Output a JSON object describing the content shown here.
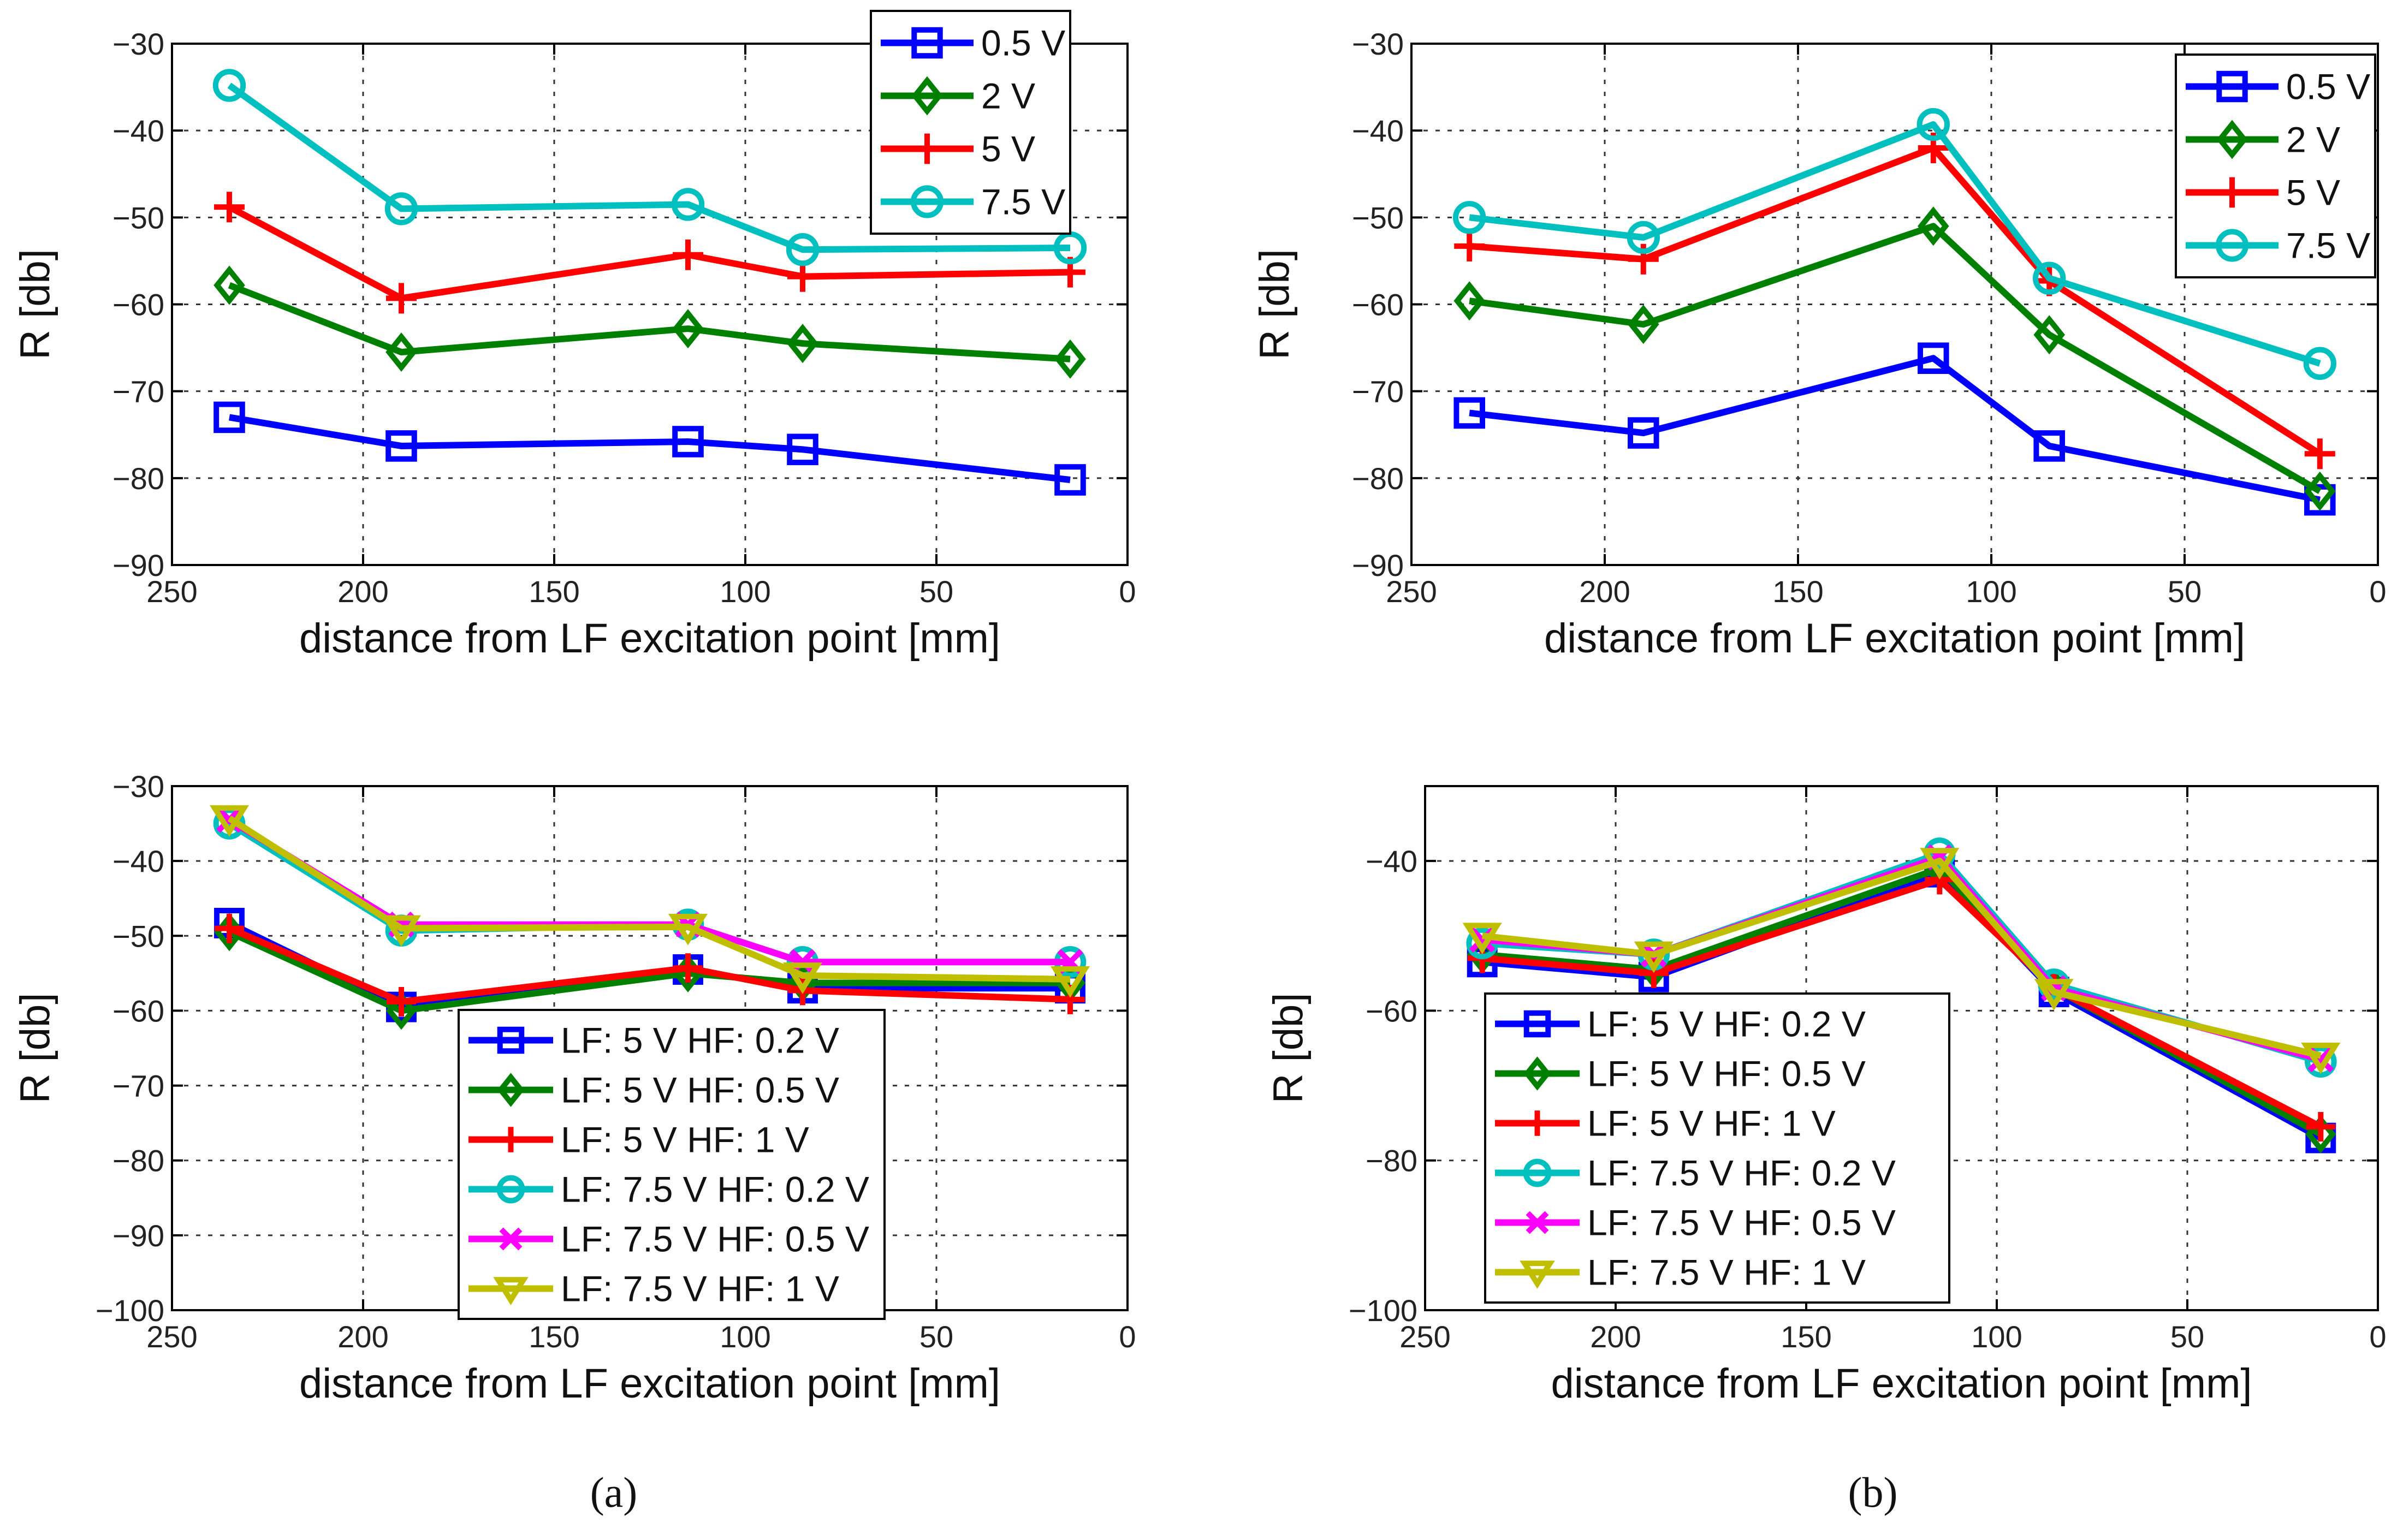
{
  "chart_data": [
    {
      "id": "top-left",
      "type": "line",
      "xlabel": "distance from LF excitation point [mm]",
      "ylabel": "R [db]",
      "xlim": [
        250,
        0
      ],
      "ylim": [
        -90,
        -30
      ],
      "xticks": [
        250,
        200,
        150,
        100,
        50,
        0
      ],
      "xtick_labels": [
        "250",
        "200",
        "150",
        "100",
        "50",
        "0"
      ],
      "yticks": [
        -30,
        -40,
        -50,
        -60,
        -70,
        -80,
        -90
      ],
      "ytick_labels": [
        "−30",
        "−40",
        "−50",
        "−60",
        "−70",
        "−80",
        "−90"
      ],
      "grid": true,
      "legend_position": "top-right",
      "x": [
        235,
        190,
        115,
        85,
        15
      ],
      "series": [
        {
          "name": "0.5 V",
          "color": "#0000ff",
          "marker": "square",
          "values": [
            -73,
            -76.3,
            -75.8,
            -76.7,
            -80.2
          ]
        },
        {
          "name": "2 V",
          "color": "#008000",
          "marker": "diamond",
          "values": [
            -57.8,
            -65.5,
            -62.8,
            -64.5,
            -66.3
          ]
        },
        {
          "name": "5 V",
          "color": "#ff0000",
          "marker": "plus",
          "values": [
            -48.8,
            -59.3,
            -54.3,
            -56.8,
            -56.3
          ]
        },
        {
          "name": "7.5 V",
          "color": "#00bfbf",
          "marker": "circle",
          "values": [
            -34.8,
            -49,
            -48.5,
            -53.7,
            -53.5
          ]
        }
      ]
    },
    {
      "id": "top-right",
      "type": "line",
      "xlabel": "distance from LF excitation point [mm]",
      "ylabel": "R [db]",
      "xlim": [
        250,
        0
      ],
      "ylim": [
        -90,
        -30
      ],
      "xticks": [
        250,
        200,
        150,
        100,
        50,
        0
      ],
      "xtick_labels": [
        "250",
        "200",
        "150",
        "100",
        "50",
        "0"
      ],
      "yticks": [
        -30,
        -40,
        -50,
        -60,
        -70,
        -80,
        -90
      ],
      "ytick_labels": [
        "−30",
        "−40",
        "−50",
        "−60",
        "−70",
        "−80",
        "−90"
      ],
      "grid": true,
      "legend_position": "top-right",
      "x": [
        235,
        190,
        115,
        85,
        15
      ],
      "series": [
        {
          "name": "0.5 V",
          "color": "#0000ff",
          "marker": "square",
          "values": [
            -72.5,
            -74.8,
            -66.2,
            -76.3,
            -82.5
          ]
        },
        {
          "name": "2 V",
          "color": "#008000",
          "marker": "diamond",
          "values": [
            -59.6,
            -62.3,
            -51,
            -63.5,
            -81.5
          ]
        },
        {
          "name": "5 V",
          "color": "#ff0000",
          "marker": "plus",
          "values": [
            -53.3,
            -54.8,
            -42,
            -57.3,
            -77.2
          ]
        },
        {
          "name": "7.5 V",
          "color": "#00bfbf",
          "marker": "circle",
          "values": [
            -50,
            -52.3,
            -39.3,
            -57,
            -66.8
          ]
        }
      ]
    },
    {
      "id": "bottom-left",
      "type": "line",
      "xlabel": "distance from LF excitation point [mm]",
      "ylabel": "R [db]",
      "xlim": [
        250,
        0
      ],
      "ylim": [
        -100,
        -30
      ],
      "xticks": [
        250,
        200,
        150,
        100,
        50,
        0
      ],
      "xtick_labels": [
        "250",
        "200",
        "150",
        "100",
        "50",
        "0"
      ],
      "yticks": [
        -30,
        -40,
        -50,
        -60,
        -70,
        -80,
        -90,
        -100
      ],
      "ytick_labels": [
        "−30",
        "−40",
        "−50",
        "−60",
        "−70",
        "−80",
        "−90",
        "−100"
      ],
      "grid": true,
      "legend_position": "bottom-center",
      "x": [
        235,
        190,
        115,
        85,
        15
      ],
      "series": [
        {
          "name": "LF: 5 V HF: 0.2 V",
          "color": "#0000ff",
          "marker": "square",
          "values": [
            -48.3,
            -59.5,
            -54.5,
            -57,
            -57
          ]
        },
        {
          "name": "LF: 5 V HF: 0.5 V",
          "color": "#008000",
          "marker": "diamond",
          "values": [
            -49.5,
            -60,
            -55,
            -56.3,
            -56.3
          ]
        },
        {
          "name": "LF: 5 V HF: 1 V",
          "color": "#ff0000",
          "marker": "plus",
          "values": [
            -49,
            -58.8,
            -54.3,
            -57.3,
            -58.5
          ]
        },
        {
          "name": "LF: 7.5 V HF: 0.2 V",
          "color": "#00bfbf",
          "marker": "circle",
          "values": [
            -35,
            -49.3,
            -48.5,
            -53.5,
            -53.5
          ]
        },
        {
          "name": "LF: 7.5 V HF: 0.5 V",
          "color": "#ff00ff",
          "marker": "x",
          "values": [
            -34.5,
            -48.5,
            -48.5,
            -53.5,
            -53.5
          ]
        },
        {
          "name": "LF: 7.5 V HF: 1 V",
          "color": "#bfbf00",
          "marker": "triangle-down",
          "values": [
            -34.3,
            -49,
            -48.8,
            -55.3,
            -55.8
          ]
        }
      ]
    },
    {
      "id": "bottom-right",
      "type": "line",
      "xlabel": "distance from LF excitation point [mm]",
      "ylabel": "R [db]",
      "xlim": [
        250,
        0
      ],
      "ylim": [
        -100,
        -30
      ],
      "xticks": [
        250,
        200,
        150,
        100,
        50,
        0
      ],
      "xtick_labels": [
        "250",
        "200",
        "150",
        "100",
        "50",
        "0"
      ],
      "yticks": [
        -40,
        -60,
        -80,
        -100
      ],
      "ytick_labels": [
        "−40",
        "−60",
        "−80",
        "−100"
      ],
      "grid": true,
      "legend_position": "bottom-left",
      "x": [
        235,
        190,
        115,
        85,
        15
      ],
      "series": [
        {
          "name": "LF: 5 V HF: 0.2 V",
          "color": "#0000ff",
          "marker": "square",
          "values": [
            -53.5,
            -55.5,
            -41.5,
            -57.5,
            -77
          ]
        },
        {
          "name": "LF: 5 V HF: 0.5 V",
          "color": "#008000",
          "marker": "diamond",
          "values": [
            -52.5,
            -54.5,
            -41,
            -57,
            -76.5
          ]
        },
        {
          "name": "LF: 5 V HF: 1 V",
          "color": "#ff0000",
          "marker": "plus",
          "values": [
            -53,
            -55,
            -42.5,
            -57,
            -75.5
          ]
        },
        {
          "name": "LF: 7.5 V HF: 0.2 V",
          "color": "#00bfbf",
          "marker": "circle",
          "values": [
            -51,
            -52.5,
            -39,
            -56.5,
            -66.8
          ]
        },
        {
          "name": "LF: 7.5 V HF: 0.5 V",
          "color": "#ff00ff",
          "marker": "x",
          "values": [
            -50.5,
            -52.5,
            -39.5,
            -57,
            -66.5
          ]
        },
        {
          "name": "LF: 7.5 V HF: 1 V",
          "color": "#bfbf00",
          "marker": "triangle-down",
          "values": [
            -50,
            -52.5,
            -40,
            -57.5,
            -66
          ]
        }
      ]
    }
  ],
  "captions": [
    "(a)",
    "(b)"
  ]
}
